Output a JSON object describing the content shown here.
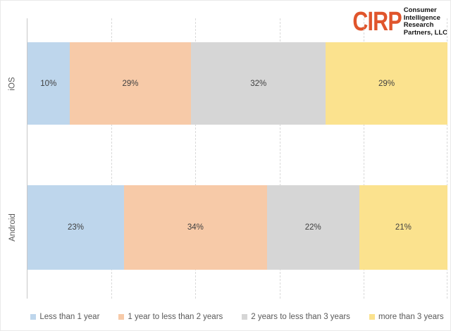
{
  "logo": {
    "acronym": "CIRP",
    "acronym_color": "#E0552C",
    "lines": [
      "Consumer",
      "Intelligence",
      "Research",
      "Partners, LLC"
    ]
  },
  "colors": {
    "grid": "#d9d9d9",
    "axis": "#c8c8c8",
    "segment_label": "#404040",
    "axis_label": "#595959"
  },
  "chart_data": {
    "type": "bar",
    "orientation": "horizontal-stacked",
    "title": "",
    "xlabel": "",
    "ylabel": "",
    "xlim": [
      0,
      100
    ],
    "value_suffix": "%",
    "grid": "dashed-vertical",
    "gridlines_percent": [
      20,
      40,
      60,
      80,
      100
    ],
    "legend_position": "bottom",
    "categories": [
      "iOS",
      "Android"
    ],
    "series": [
      {
        "name": "Less than 1 year",
        "color": "#bed6ec",
        "values": [
          10,
          23
        ]
      },
      {
        "name": "1 year to less than 2 years",
        "color": "#f7caa8",
        "values": [
          29,
          34
        ]
      },
      {
        "name": "2 years to less than 3 years",
        "color": "#d6d6d6",
        "values": [
          32,
          22
        ]
      },
      {
        "name": "more than 3 years",
        "color": "#fbe28e",
        "values": [
          29,
          21
        ]
      }
    ]
  }
}
